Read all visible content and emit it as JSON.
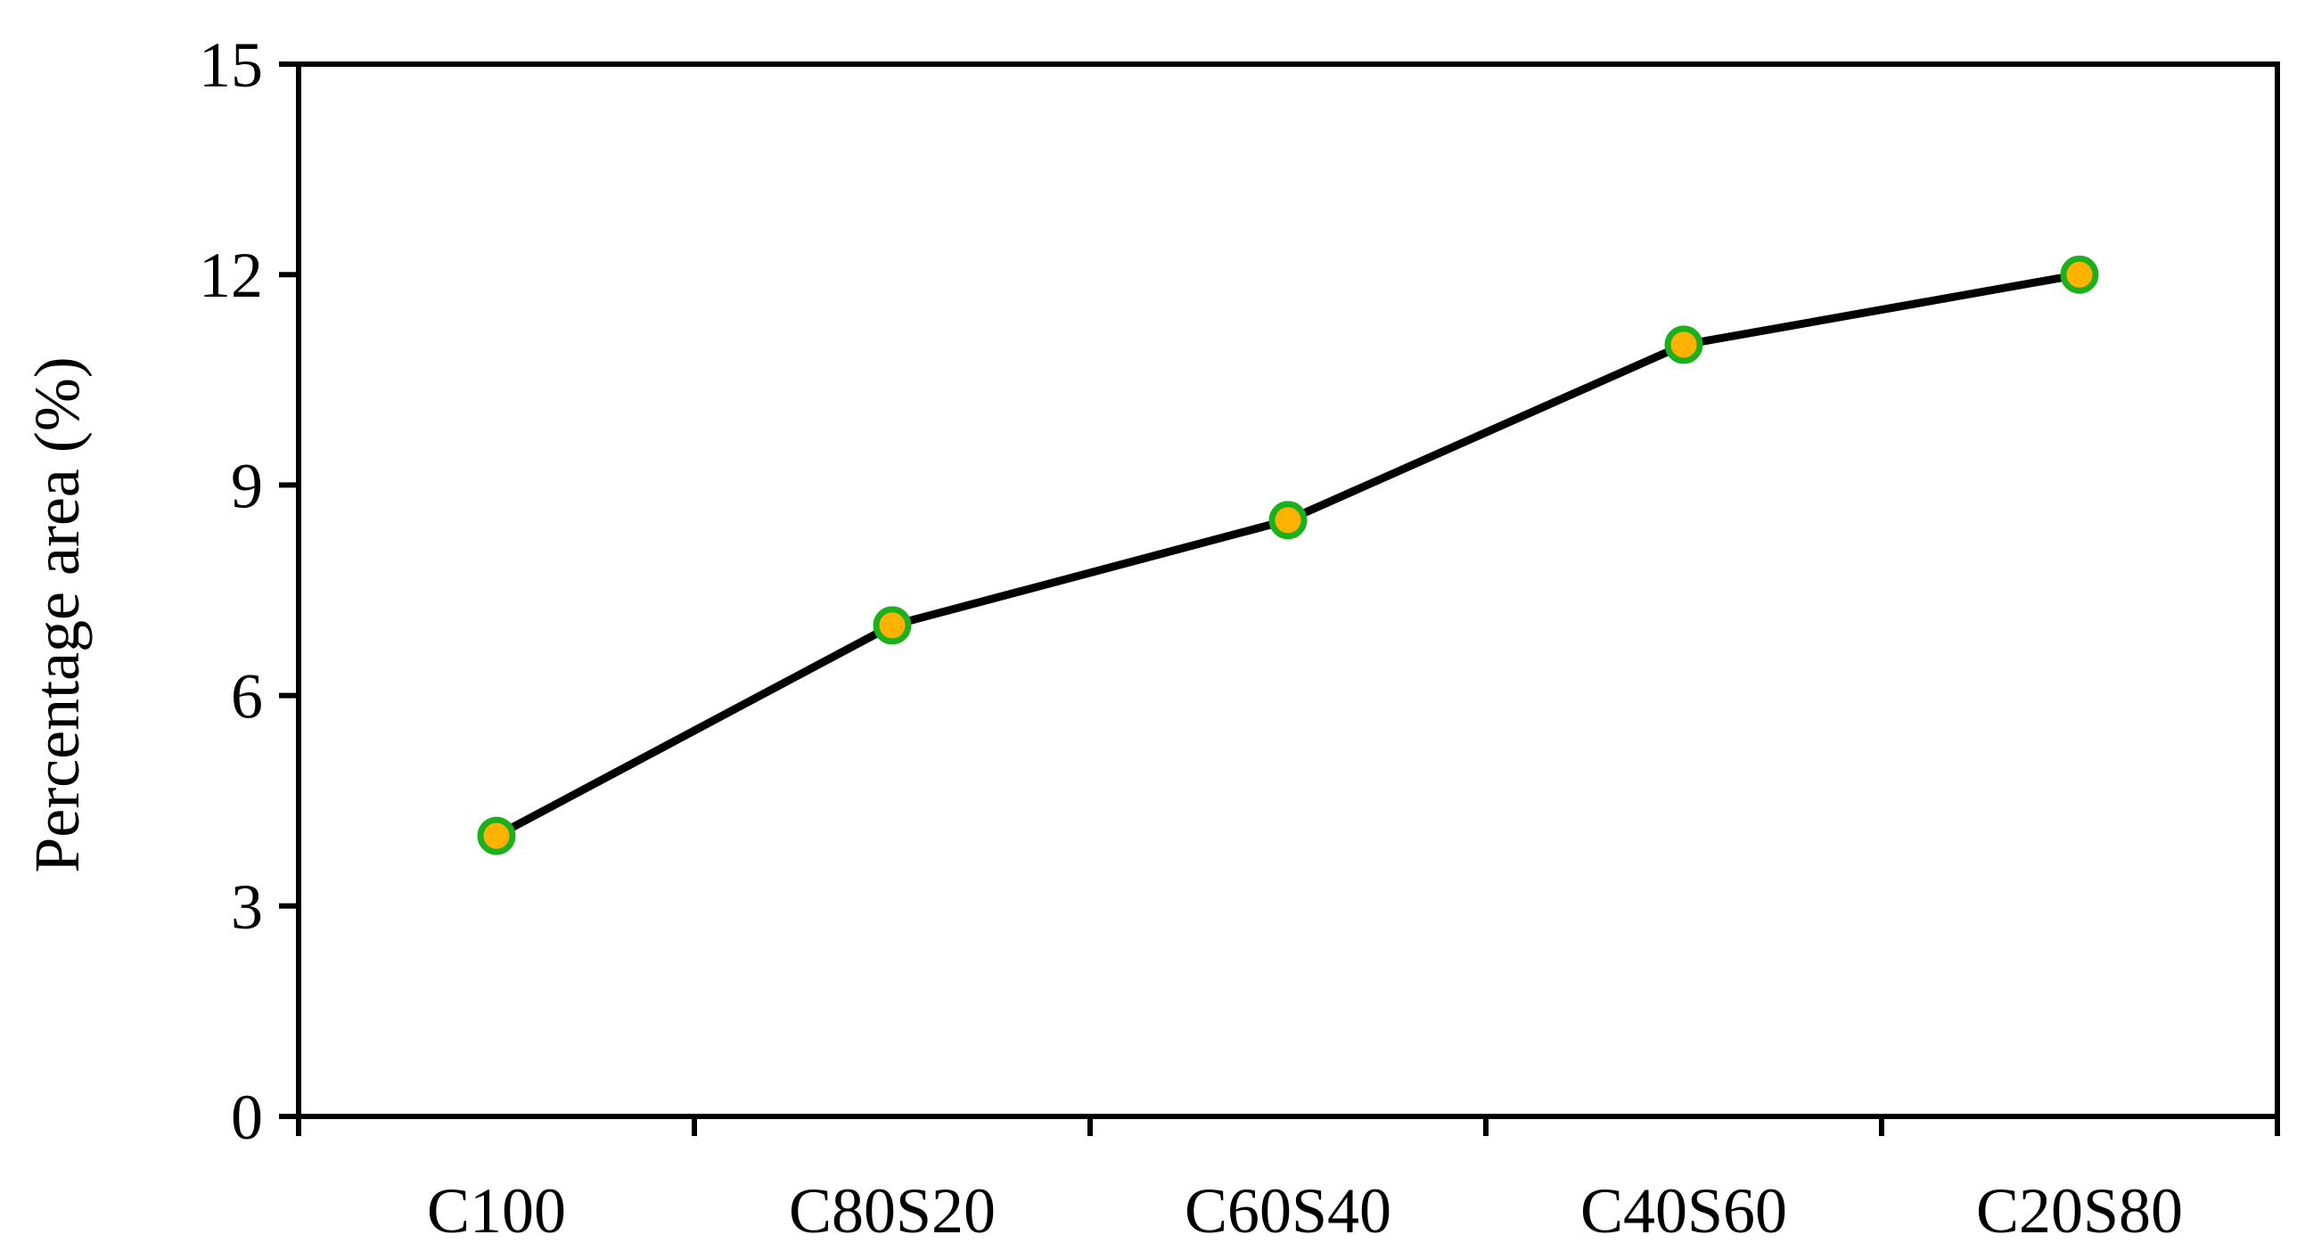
{
  "chart_data": {
    "type": "line",
    "title": "",
    "xlabel": "",
    "ylabel": "Percentage area (%)",
    "categories": [
      "C100",
      "C80S20",
      "C60S40",
      "C40S60",
      "C20S80"
    ],
    "series": [
      {
        "values": [
          4,
          7,
          8.5,
          11,
          12
        ],
        "line_color": "#000000",
        "marker_fill": "#FFB300",
        "marker_edge": "#1DB01D"
      }
    ],
    "ylim": [
      0,
      15
    ],
    "yticks": [
      "0",
      "3",
      "6",
      "9",
      "12",
      "15"
    ],
    "grid": false,
    "legend": "none"
  }
}
